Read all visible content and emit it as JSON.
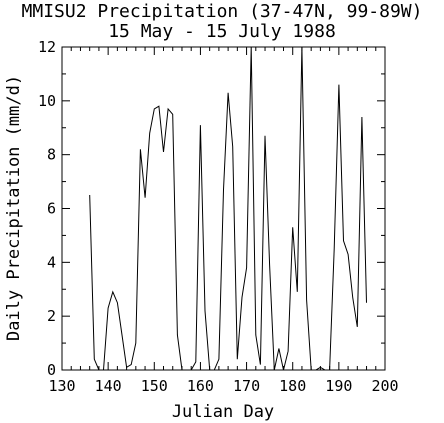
{
  "chart_data": {
    "type": "line",
    "title": "MMISU2 Precipitation (37-47N, 99-89W)",
    "subtitle": "15 May - 15 July 1988",
    "xlabel": "Julian Day",
    "ylabel": "Daily Precipitation (mm/d)",
    "xlim": [
      130,
      200
    ],
    "ylim": [
      0,
      12
    ],
    "x_ticks": [
      130,
      140,
      150,
      160,
      170,
      180,
      190,
      200
    ],
    "y_ticks": [
      0,
      2,
      4,
      6,
      8,
      10,
      12
    ],
    "x_minor_step": 2,
    "y_minor_step": 1,
    "grid": false,
    "series": [
      {
        "x": [
          136,
          137,
          138,
          139,
          140,
          141,
          142,
          143,
          144,
          145,
          146,
          147,
          148,
          149,
          150,
          151,
          152,
          153,
          154,
          155,
          156,
          157,
          158,
          159,
          160,
          161,
          162,
          163,
          164,
          165,
          166,
          167,
          168,
          169,
          170,
          171,
          172,
          173,
          174,
          175,
          176,
          177,
          178,
          179,
          180,
          181,
          182,
          183,
          184,
          185,
          186,
          187,
          188,
          189,
          190,
          191,
          192,
          193,
          194,
          195,
          196
        ],
        "y": [
          6.5,
          0.4,
          0.0,
          0.0,
          2.3,
          2.9,
          2.5,
          1.3,
          0.1,
          0.2,
          1.0,
          8.2,
          6.4,
          8.8,
          9.7,
          9.8,
          8.1,
          9.7,
          9.5,
          1.3,
          0.0,
          0.0,
          0.0,
          0.3,
          9.1,
          2.2,
          0.0,
          0.0,
          0.4,
          6.7,
          10.3,
          8.3,
          0.4,
          2.7,
          3.8,
          12.0,
          1.3,
          0.2,
          8.7,
          3.9,
          0.0,
          0.8,
          0.0,
          0.7,
          5.3,
          2.9,
          12.0,
          2.6,
          0.0,
          0.0,
          0.1,
          0.0,
          0.0,
          4.5,
          10.6,
          4.8,
          4.3,
          2.7,
          1.6,
          9.4,
          2.5
        ]
      }
    ]
  }
}
